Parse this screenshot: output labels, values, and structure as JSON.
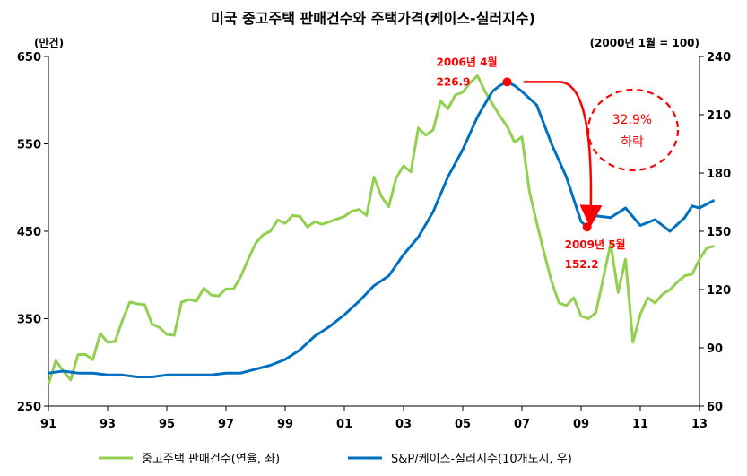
{
  "chart_data": {
    "type": "line",
    "title": "미국 중고주택 판매건수와 주택가격(케이스-실러지수)",
    "left_unit_label": "(만건)",
    "right_unit_label": "(2000년 1월 = 100)",
    "y_left": {
      "min": 250,
      "max": 650,
      "ticks": [
        "650",
        "550",
        "450",
        "350",
        "250"
      ]
    },
    "y_right": {
      "min": 60,
      "max": 240,
      "ticks": [
        "240",
        "210",
        "180",
        "150",
        "120",
        "90",
        "60"
      ]
    },
    "x": {
      "min": 1991,
      "max": 2013,
      "ticks": [
        {
          "label": "91",
          "year": 1991
        },
        {
          "label": "93",
          "year": 1993
        },
        {
          "label": "95",
          "year": 1995
        },
        {
          "label": "97",
          "year": 1997
        },
        {
          "label": "99",
          "year": 1999
        },
        {
          "label": "01",
          "year": 2001
        },
        {
          "label": "03",
          "year": 2003
        },
        {
          "label": "05",
          "year": 2005
        },
        {
          "label": "07",
          "year": 2007
        },
        {
          "label": "09",
          "year": 2009
        },
        {
          "label": "11",
          "year": 2011
        },
        {
          "label": "13",
          "year": 2013
        }
      ]
    },
    "grid": false,
    "legend_position": "bottom",
    "series": [
      {
        "name": "중고주택 판매건수(연율, 좌)",
        "axis": "left",
        "color": "#92d050",
        "points": [
          [
            1991.0,
            275
          ],
          [
            1991.25,
            302
          ],
          [
            1991.5,
            290
          ],
          [
            1991.75,
            280
          ],
          [
            1992.0,
            309
          ],
          [
            1992.25,
            309
          ],
          [
            1992.5,
            303
          ],
          [
            1992.75,
            333
          ],
          [
            1993.0,
            323
          ],
          [
            1993.25,
            324
          ],
          [
            1993.5,
            348
          ],
          [
            1993.75,
            369
          ],
          [
            1994.0,
            367
          ],
          [
            1994.25,
            366
          ],
          [
            1994.5,
            344
          ],
          [
            1994.75,
            340
          ],
          [
            1995.0,
            332
          ],
          [
            1995.25,
            331
          ],
          [
            1995.5,
            369
          ],
          [
            1995.75,
            372
          ],
          [
            1996.0,
            370
          ],
          [
            1996.25,
            385
          ],
          [
            1996.5,
            377
          ],
          [
            1996.75,
            376
          ],
          [
            1997.0,
            384
          ],
          [
            1997.25,
            384
          ],
          [
            1997.5,
            398
          ],
          [
            1997.75,
            418
          ],
          [
            1998.0,
            436
          ],
          [
            1998.25,
            446
          ],
          [
            1998.5,
            450
          ],
          [
            1998.75,
            463
          ],
          [
            1999.0,
            459
          ],
          [
            1999.25,
            468
          ],
          [
            1999.5,
            467
          ],
          [
            1999.75,
            455
          ],
          [
            2000.0,
            461
          ],
          [
            2000.25,
            458
          ],
          [
            2000.5,
            461
          ],
          [
            2000.75,
            464
          ],
          [
            2001.0,
            467
          ],
          [
            2001.25,
            473
          ],
          [
            2001.5,
            475
          ],
          [
            2001.75,
            468
          ],
          [
            2002.0,
            512
          ],
          [
            2002.25,
            490
          ],
          [
            2002.5,
            478
          ],
          [
            2002.75,
            511
          ],
          [
            2003.0,
            525
          ],
          [
            2003.25,
            518
          ],
          [
            2003.5,
            568
          ],
          [
            2003.75,
            560
          ],
          [
            2004.0,
            566
          ],
          [
            2004.25,
            599
          ],
          [
            2004.5,
            590
          ],
          [
            2004.75,
            606
          ],
          [
            2005.0,
            609
          ],
          [
            2005.25,
            620
          ],
          [
            2005.5,
            628
          ],
          [
            2005.75,
            610
          ],
          [
            2006.0,
            596
          ],
          [
            2006.25,
            582
          ],
          [
            2006.5,
            570
          ],
          [
            2006.75,
            552
          ],
          [
            2007.0,
            558
          ],
          [
            2007.25,
            496
          ],
          [
            2007.5,
            460
          ],
          [
            2007.75,
            425
          ],
          [
            2008.0,
            393
          ],
          [
            2008.25,
            368
          ],
          [
            2008.5,
            365
          ],
          [
            2008.75,
            374
          ],
          [
            2009.0,
            353
          ],
          [
            2009.25,
            350
          ],
          [
            2009.5,
            357
          ],
          [
            2009.75,
            397
          ],
          [
            2010.0,
            436
          ],
          [
            2010.25,
            380
          ],
          [
            2010.5,
            418
          ],
          [
            2010.75,
            323
          ],
          [
            2011.0,
            355
          ],
          [
            2011.25,
            374
          ],
          [
            2011.5,
            368
          ],
          [
            2011.75,
            378
          ],
          [
            2012.0,
            383
          ],
          [
            2012.25,
            392
          ],
          [
            2012.5,
            399
          ],
          [
            2012.75,
            401
          ],
          [
            2013.0,
            418
          ],
          [
            2013.25,
            431
          ],
          [
            2013.5,
            433
          ]
        ]
      },
      {
        "name": "S&P/케이스-실러지수(10개도시, 우)",
        "axis": "right",
        "color": "#0070c0",
        "points": [
          [
            1991.0,
            77
          ],
          [
            1991.5,
            78
          ],
          [
            1992.0,
            77
          ],
          [
            1992.5,
            77
          ],
          [
            1993.0,
            76
          ],
          [
            1993.5,
            76
          ],
          [
            1994.0,
            75
          ],
          [
            1994.5,
            75
          ],
          [
            1995.0,
            76
          ],
          [
            1995.5,
            76
          ],
          [
            1996.0,
            76
          ],
          [
            1996.5,
            76
          ],
          [
            1997.0,
            77
          ],
          [
            1997.5,
            77
          ],
          [
            1998.0,
            79
          ],
          [
            1998.5,
            81
          ],
          [
            1999.0,
            84
          ],
          [
            1999.5,
            89
          ],
          [
            2000.0,
            96
          ],
          [
            2000.5,
            101
          ],
          [
            2001.0,
            107
          ],
          [
            2001.5,
            114
          ],
          [
            2002.0,
            122
          ],
          [
            2002.5,
            127
          ],
          [
            2003.0,
            138
          ],
          [
            2003.5,
            147
          ],
          [
            2004.0,
            160
          ],
          [
            2004.5,
            178
          ],
          [
            2005.0,
            192
          ],
          [
            2005.5,
            209
          ],
          [
            2006.0,
            222
          ],
          [
            2006.25,
            225
          ],
          [
            2006.5,
            226.9
          ],
          [
            2006.75,
            225
          ],
          [
            2007.0,
            222
          ],
          [
            2007.5,
            215
          ],
          [
            2008.0,
            195
          ],
          [
            2008.5,
            178
          ],
          [
            2009.0,
            155
          ],
          [
            2009.2,
            152.2
          ],
          [
            2009.5,
            158
          ],
          [
            2010.0,
            157
          ],
          [
            2010.5,
            162
          ],
          [
            2011.0,
            153
          ],
          [
            2011.5,
            156
          ],
          [
            2012.0,
            150
          ],
          [
            2012.5,
            157
          ],
          [
            2012.75,
            163
          ],
          [
            2013.0,
            162
          ],
          [
            2013.5,
            166
          ]
        ]
      }
    ],
    "annotations": {
      "peak": {
        "date_label": "2006년 4월",
        "value_label": "226.9",
        "x": 2006.5,
        "y": 226.9
      },
      "trough": {
        "date_label": "2009년 5월",
        "value_label": "152.2",
        "x": 2009.2,
        "y": 152.2
      },
      "decline_label_1": "32.9%",
      "decline_label_2": "하락"
    },
    "legend": [
      {
        "label": "중고주택 판매건수(연율, 좌)",
        "color": "#92d050"
      },
      {
        "label": "S&P/케이스-실러지수(10개도시, 우)",
        "color": "#0070c0"
      }
    ]
  }
}
